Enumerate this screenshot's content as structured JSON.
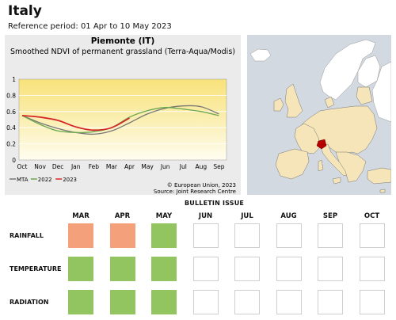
{
  "title": "Italy",
  "reference_period": "Reference period: 01 Apr to 10 May 2023",
  "chart_data": {
    "type": "line",
    "title": "Piemonte (IT)",
    "subtitle": "Smoothed NDVI of permanent grassland (Terra-Aqua/Modis)",
    "x": [
      "Oct",
      "Nov",
      "Dec",
      "Jan",
      "Feb",
      "Mar",
      "Apr",
      "May",
      "Jun",
      "Jul",
      "Aug",
      "Sep"
    ],
    "ylim": [
      0,
      1
    ],
    "yticks": [
      "0",
      "0.2",
      "0.4",
      "0.6",
      "0.8",
      "1"
    ],
    "series": [
      {
        "name": "MTA",
        "color": "#777777",
        "values": [
          0.55,
          0.46,
          0.39,
          0.34,
          0.32,
          0.36,
          0.46,
          0.57,
          0.64,
          0.67,
          0.66,
          0.57
        ]
      },
      {
        "name": "2022",
        "color": "#6aa84f",
        "values": [
          0.55,
          0.44,
          0.36,
          0.34,
          0.35,
          0.4,
          0.53,
          0.61,
          0.65,
          0.63,
          0.6,
          0.55
        ]
      },
      {
        "name": "2023",
        "color": "#d62728",
        "values": [
          0.55,
          0.53,
          0.49,
          0.41,
          0.37,
          0.4,
          0.52,
          null,
          null,
          null,
          null,
          null
        ]
      }
    ],
    "copyright": "© European Union, 2023",
    "source": "Source: Joint Research Centre"
  },
  "map": {
    "highlight_region": "Piemonte",
    "land_color": "#f5e5b8",
    "highlight_color": "#b50000",
    "sea_color": "#d3d9e0"
  },
  "bulletin": {
    "header": "BULLETIN ISSUE",
    "months": [
      "MAR",
      "APR",
      "MAY",
      "JUN",
      "JUL",
      "AUG",
      "SEP",
      "OCT"
    ],
    "rows": [
      {
        "label": "RAINFALL",
        "status": [
          "red",
          "red",
          "green",
          "empty",
          "empty",
          "empty",
          "empty",
          "empty"
        ]
      },
      {
        "label": "TEMPERATURE",
        "status": [
          "green",
          "green",
          "green",
          "empty",
          "empty",
          "empty",
          "empty",
          "empty"
        ]
      },
      {
        "label": "RADIATION",
        "status": [
          "green",
          "green",
          "green",
          "empty",
          "empty",
          "empty",
          "empty",
          "empty"
        ]
      }
    ]
  }
}
